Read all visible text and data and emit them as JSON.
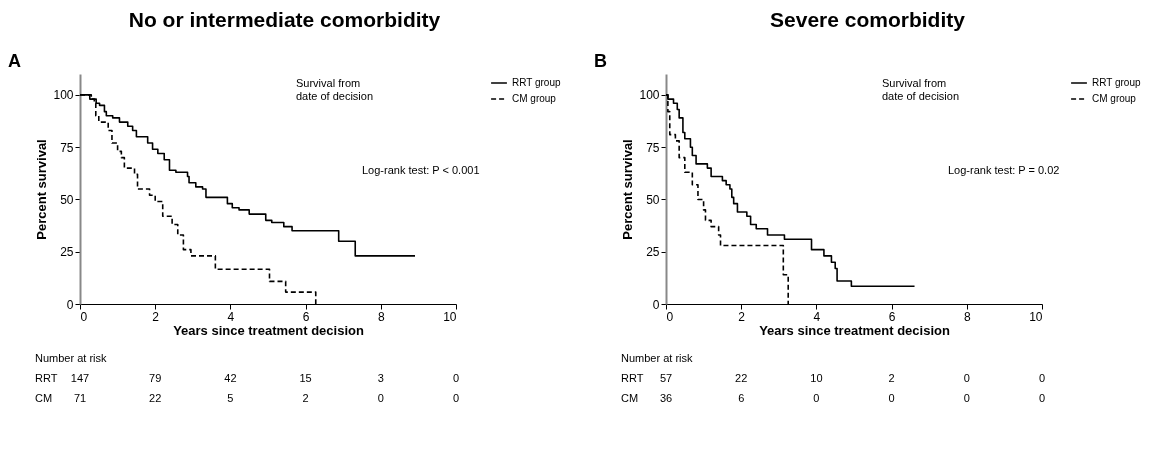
{
  "chart_data": [
    {
      "type": "step",
      "title": "No or intermediate comorbidity",
      "xlabel": "Years since treatment decision",
      "ylabel": "Percent survival",
      "xlim": [
        0,
        10
      ],
      "xticks": [
        0,
        2,
        4,
        6,
        8,
        10
      ],
      "ylim": [
        0,
        110
      ],
      "yticks": [
        0,
        25,
        50,
        75,
        100
      ],
      "legend": "right",
      "grid": false,
      "series": [
        {
          "name": "RRT group",
          "color": "#000000",
          "line_style": "solid",
          "x": [
            0,
            0.26,
            0.43,
            0.52,
            0.65,
            0.7,
            0.87,
            1.05,
            1.27,
            1.4,
            1.5,
            1.67,
            1.8,
            1.93,
            2.07,
            2.24,
            2.38,
            2.55,
            2.86,
            2.9,
            3.08,
            3.26,
            3.35,
            3.92,
            4.05,
            4.23,
            4.5,
            4.94,
            5.1,
            5.42,
            5.64,
            6.88,
            7.32,
            8.91
          ],
          "values": [
            100,
            98,
            96,
            95,
            92,
            90,
            89,
            87,
            85,
            83,
            80,
            80,
            77,
            74,
            72,
            69,
            64,
            63,
            61,
            58,
            56,
            55,
            51,
            48,
            46,
            45,
            43,
            40,
            39,
            37,
            35,
            30,
            23,
            23
          ]
        },
        {
          "name": "CM group",
          "color": "#000000",
          "line_style": "dashed",
          "x": [
            0,
            0.3,
            0.38,
            0.42,
            0.5,
            0.75,
            0.85,
            1.0,
            1.1,
            1.18,
            1.45,
            1.53,
            1.85,
            2.0,
            2.2,
            2.45,
            2.6,
            2.75,
            2.95,
            3.6,
            5.04,
            5.47,
            6.27
          ],
          "values": [
            100,
            98,
            96,
            90,
            87,
            83,
            77,
            73,
            70,
            65,
            62,
            55,
            52,
            49,
            42,
            38,
            33,
            26,
            23,
            16.6,
            10.8,
            5.7,
            0
          ]
        }
      ],
      "annotations": [
        "A",
        "Survival from date of decision",
        "Log-rank test: P < 0.001",
        "Number at risk",
        "RRT 147 79 42 15 3 0",
        "CM 71 22 5 2 0 0"
      ]
    },
    {
      "type": "step",
      "title": "Severe comorbidity",
      "xlabel": "Years since treatment decision",
      "ylabel": "Percent survival",
      "xlim": [
        0,
        10
      ],
      "xticks": [
        0,
        2,
        4,
        6,
        8,
        10
      ],
      "ylim": [
        0,
        110
      ],
      "yticks": [
        0,
        25,
        50,
        75,
        100
      ],
      "legend": "right",
      "grid": false,
      "series": [
        {
          "name": "RRT group",
          "color": "#000000",
          "line_style": "solid",
          "x": [
            0,
            0.05,
            0.2,
            0.3,
            0.35,
            0.45,
            0.5,
            0.65,
            0.7,
            0.8,
            1.1,
            1.2,
            1.5,
            1.6,
            1.7,
            1.75,
            1.8,
            1.9,
            2.15,
            2.25,
            2.4,
            2.7,
            3.15,
            3.87,
            4.2,
            4.4,
            4.5,
            4.55,
            4.93,
            6.61
          ],
          "values": [
            100,
            98,
            96,
            93,
            89,
            82,
            79,
            75,
            71,
            67,
            65,
            61,
            59,
            57,
            55,
            51,
            48,
            44,
            42,
            38,
            36,
            33,
            31,
            26,
            23,
            20,
            17,
            11,
            8.5,
            8.5
          ]
        },
        {
          "name": "CM group",
          "color": "#000000",
          "line_style": "dashed",
          "x": [
            0,
            0.05,
            0.1,
            0.25,
            0.35,
            0.5,
            0.7,
            0.85,
            1.0,
            1.05,
            1.2,
            1.4,
            1.45,
            3.12,
            3.25
          ],
          "values": [
            100,
            92,
            81,
            78,
            70,
            63,
            57,
            50,
            45,
            40,
            37,
            33,
            28,
            14,
            0
          ]
        }
      ],
      "annotations": [
        "B",
        "Survival from date of decision",
        "Log-rank test: P = 0.02",
        "Number at risk",
        "RRT 57 22 10 2 0 0",
        "CM 36 6 0 0 0 0"
      ]
    }
  ]
}
